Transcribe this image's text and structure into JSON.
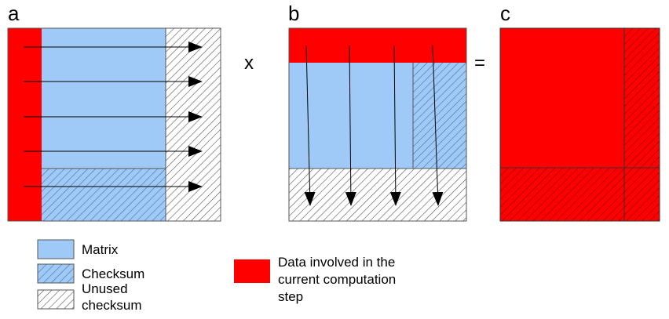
{
  "panels": {
    "a": {
      "label": "a"
    },
    "b": {
      "label": "b"
    },
    "c": {
      "label": "c"
    }
  },
  "operators": {
    "multiply": "x",
    "equals": "="
  },
  "colors": {
    "matrix": "#9fcaf8",
    "highlight": "#ff0000",
    "unused": "#ffffff",
    "hatch": "#555555",
    "border": "#555555"
  },
  "legend": {
    "matrix": "Matrix",
    "checksum": "Checksum",
    "unused_checksum_line1": "Unused",
    "unused_checksum_line2": "checksum",
    "data_involved_line1": "Data involved in the",
    "data_involved_line2": "current computation",
    "data_involved_line3": "step"
  }
}
